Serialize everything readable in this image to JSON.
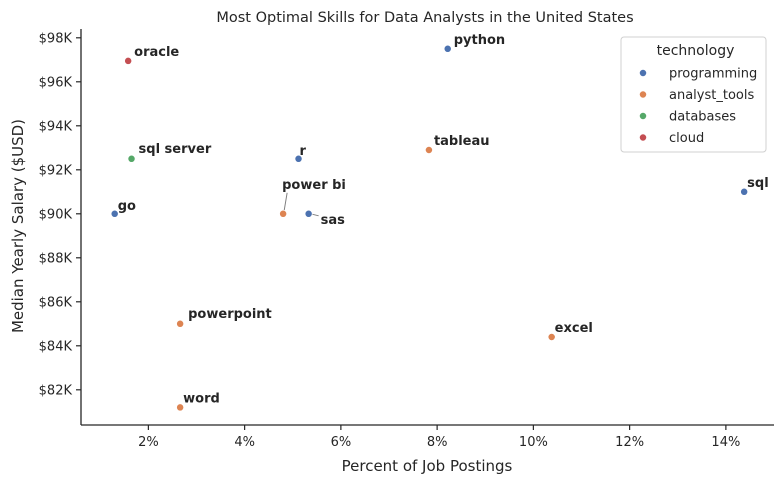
{
  "chart_data": {
    "type": "scatter",
    "title": "Most Optimal Skills for Data Analysts in the United States",
    "xlabel": "Percent of Job Postings",
    "ylabel": "Median Yearly Salary ($USD)",
    "xlim": [
      0.6,
      15.0
    ],
    "ylim": [
      80.4,
      98.4
    ],
    "xticks": [
      2,
      4,
      6,
      8,
      10,
      12,
      14
    ],
    "xtick_labels": [
      "2%",
      "4%",
      "6%",
      "8%",
      "10%",
      "12%",
      "14%"
    ],
    "yticks": [
      82,
      84,
      86,
      88,
      90,
      92,
      94,
      96,
      98
    ],
    "ytick_labels": [
      "$82K",
      "$84K",
      "$86K",
      "$88K",
      "$90K",
      "$92K",
      "$94K",
      "$96K",
      "$98K"
    ],
    "grid": false,
    "legend": {
      "title": "technology",
      "placement": "top-right",
      "entries": [
        {
          "name": "programming",
          "color": "#4c72b0"
        },
        {
          "name": "analyst_tools",
          "color": "#dd8452"
        },
        {
          "name": "databases",
          "color": "#55a868"
        },
        {
          "name": "cloud",
          "color": "#c44e52"
        }
      ]
    },
    "points": [
      {
        "label": "python",
        "x": 8.22,
        "y": 97.5,
        "technology": "programming"
      },
      {
        "label": "oracle",
        "x": 1.58,
        "y": 96.95,
        "technology": "cloud"
      },
      {
        "label": "sql server",
        "x": 1.65,
        "y": 92.5,
        "technology": "databases"
      },
      {
        "label": "r",
        "x": 5.12,
        "y": 92.5,
        "technology": "programming"
      },
      {
        "label": "tableau",
        "x": 7.83,
        "y": 92.9,
        "technology": "analyst_tools"
      },
      {
        "label": "sql",
        "x": 14.38,
        "y": 91.0,
        "technology": "programming"
      },
      {
        "label": "go",
        "x": 1.3,
        "y": 90.0,
        "technology": "programming"
      },
      {
        "label": "power bi",
        "x": 4.8,
        "y": 90.0,
        "technology": "analyst_tools"
      },
      {
        "label": "sas",
        "x": 5.33,
        "y": 90.0,
        "technology": "programming"
      },
      {
        "label": "powerpoint",
        "x": 2.66,
        "y": 85.0,
        "technology": "analyst_tools"
      },
      {
        "label": "excel",
        "x": 10.38,
        "y": 84.4,
        "technology": "analyst_tools"
      },
      {
        "label": "word",
        "x": 2.66,
        "y": 81.2,
        "technology": "analyst_tools"
      }
    ]
  }
}
